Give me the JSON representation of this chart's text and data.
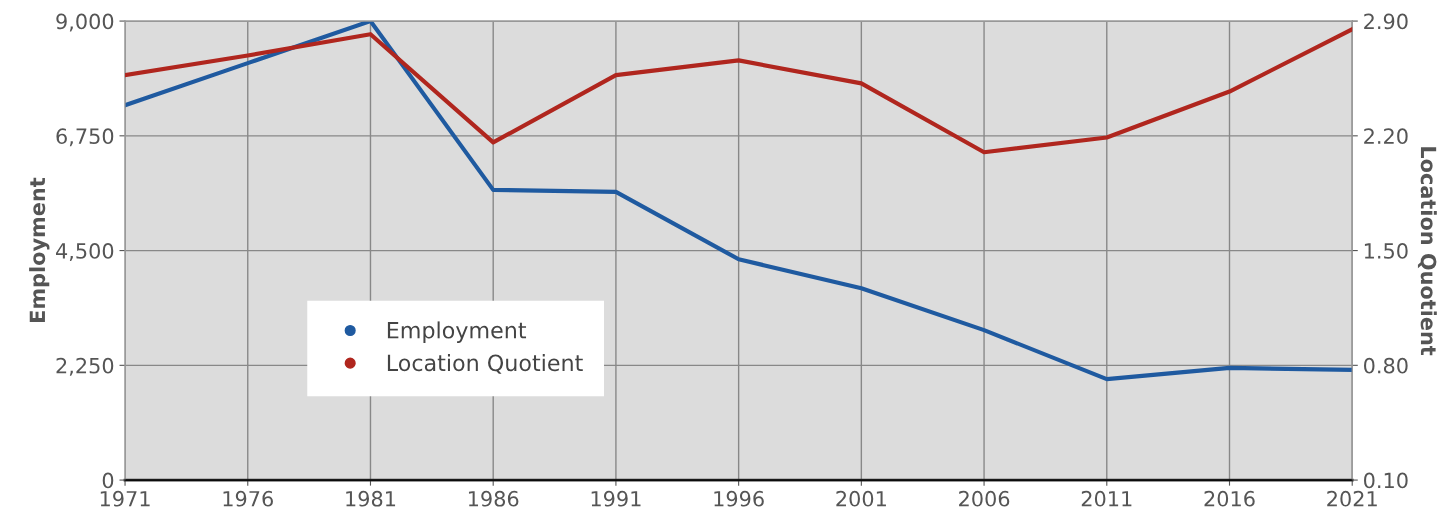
{
  "chart_data": {
    "type": "line",
    "ylabel": "Employment",
    "y2label": "Location Quotient",
    "x": [
      1971,
      1976,
      1981,
      1986,
      1991,
      1996,
      2001,
      2006,
      2011,
      2016,
      2021
    ],
    "xlim": [
      1971,
      2021
    ],
    "xticks": [
      1971,
      1976,
      1981,
      1986,
      1991,
      1996,
      2001,
      2006,
      2011,
      2016,
      2021
    ],
    "ylim": [
      0,
      9000
    ],
    "yticks": [
      0,
      {
        "value": 2250,
        "label": "2,250"
      },
      {
        "value": 4500,
        "label": "4,500"
      },
      {
        "value": 6750,
        "label": "6,750"
      },
      {
        "value": 9000,
        "label": "9,000"
      }
    ],
    "y2lim": [
      0.1,
      2.9
    ],
    "y2ticks": [
      {
        "value": 0.1,
        "label": "0.10"
      },
      {
        "value": 0.8,
        "label": "0.80"
      },
      {
        "value": 1.5,
        "label": "1.50"
      },
      {
        "value": 2.2,
        "label": "2.20"
      },
      {
        "value": 2.9,
        "label": "2.90"
      }
    ],
    "grid": true,
    "legend": "bottom left",
    "marker": "none",
    "series": [
      {
        "name": "Employment",
        "color": "#1f5aa0",
        "values": [
          7350,
          8175,
          9000,
          5690,
          5650,
          4330,
          3760,
          2940,
          1980,
          2200,
          2160
        ]
      },
      {
        "name": "Location Quotient",
        "color": "#b0261e",
        "axis": "y2",
        "values": [
          2.57,
          2.69,
          2.82,
          2.16,
          2.57,
          2.66,
          2.52,
          2.1,
          2.19,
          2.47,
          2.85
        ]
      }
    ]
  }
}
